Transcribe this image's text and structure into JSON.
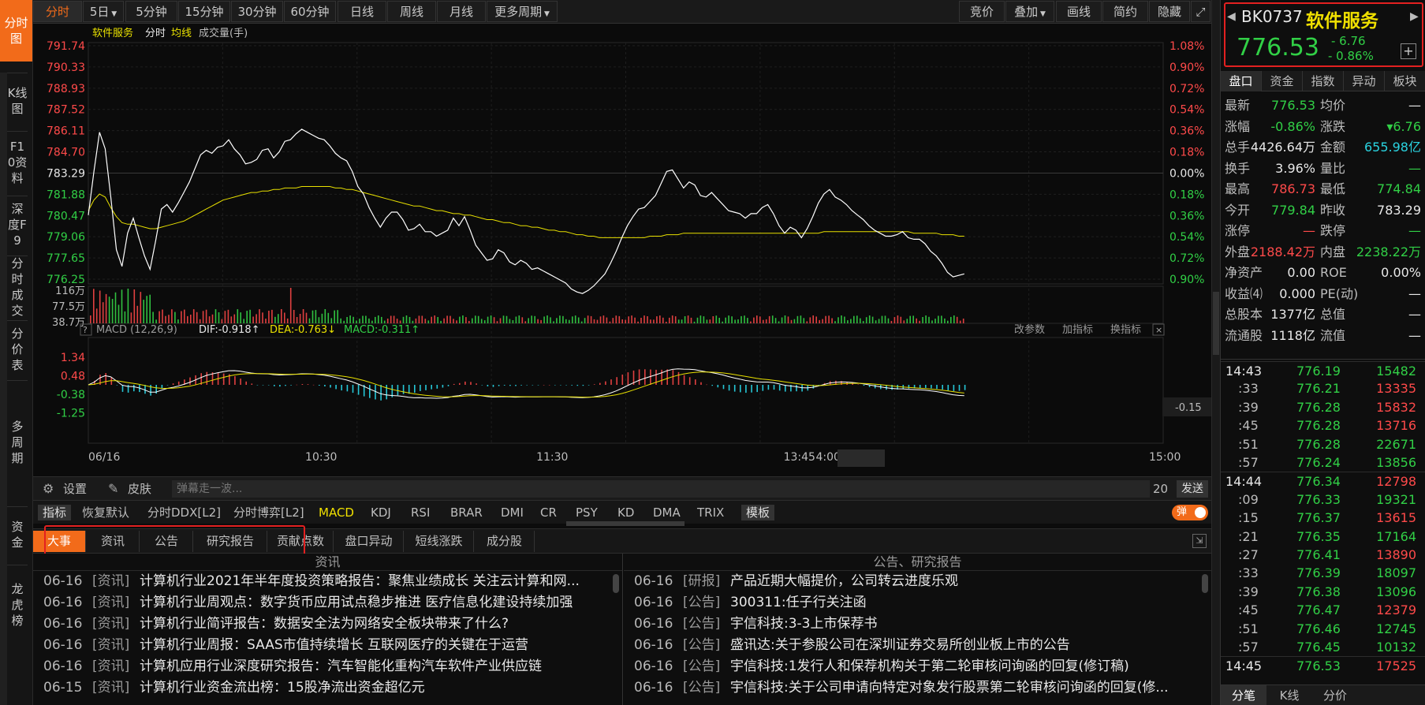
{
  "left_nav": [
    {
      "label": "分时图",
      "active": true
    },
    {
      "label": "K线图"
    },
    {
      "label": "F10资料"
    },
    {
      "label": "深度F9"
    },
    {
      "label": "分时成交"
    },
    {
      "label": "分价表"
    },
    {
      "label": "多周期"
    },
    {
      "label": "资金"
    },
    {
      "label": "龙虎榜"
    }
  ],
  "toolbar": {
    "periods": [
      "分时",
      "5日",
      "5分钟",
      "15分钟",
      "30分钟",
      "60分钟",
      "日线",
      "周线",
      "月线",
      "更多周期"
    ],
    "right": [
      "竞价",
      "叠加",
      "画线",
      "简约",
      "隐藏"
    ]
  },
  "chart_header": {
    "name": "软件服务",
    "mode": "分时",
    "avg": "均线",
    "volume": "成交量(手)"
  },
  "chart_data": {
    "type": "line",
    "price_ticks": [
      "791.74",
      "790.33",
      "788.93",
      "787.52",
      "786.11",
      "784.70",
      "783.29",
      "781.88",
      "780.47",
      "779.06",
      "777.65",
      "776.25"
    ],
    "pct_ticks": [
      "1.08%",
      "0.90%",
      "0.72%",
      "0.54%",
      "0.36%",
      "0.18%",
      "0.00%",
      "0.18%",
      "0.36%",
      "0.54%",
      "0.72%",
      "0.90%"
    ],
    "vol_ticks": [
      "116万",
      "77.5万",
      "38.7万"
    ],
    "macd_ticks": [
      "1.34",
      "0.48",
      "-0.38",
      "-1.25"
    ],
    "x_ticks": [
      "06/16",
      "10:30",
      "11:30",
      "13:45",
      "4:00",
      "15:00"
    ],
    "prev_close": 783.29,
    "price": [
      780.5,
      783.4,
      786.0,
      784.9,
      781.7,
      778.2,
      777.1,
      779.3,
      780.3,
      779.0,
      777.8,
      776.9,
      778.8,
      780.9,
      781.2,
      780.7,
      781.3,
      782.0,
      782.7,
      783.6,
      784.5,
      784.8,
      784.6,
      785.0,
      785.1,
      785.5,
      784.9,
      784.5,
      783.9,
      784.0,
      784.2,
      784.8,
      784.9,
      784.3,
      784.7,
      785.4,
      785.5,
      785.9,
      786.2,
      786.0,
      785.8,
      785.6,
      785.5,
      785.1,
      784.6,
      784.3,
      784.1,
      783.4,
      782.4,
      781.9,
      781.0,
      780.3,
      779.7,
      780.3,
      780.7,
      780.7,
      780.2,
      779.5,
      779.6,
      779.9,
      779.4,
      779.4,
      779.1,
      779.3,
      779.5,
      780.3,
      779.8,
      780.4,
      779.5,
      778.5,
      778.0,
      777.5,
      777.6,
      778.2,
      778.0,
      777.4,
      777.2,
      777.5,
      777.3,
      776.9,
      777.0,
      776.8,
      776.6,
      776.4,
      776.2,
      776.0,
      775.6,
      775.4,
      775.3,
      775.5,
      775.8,
      776.2,
      776.6,
      777.3,
      778.1,
      779.0,
      779.8,
      780.4,
      780.9,
      781.0,
      781.4,
      781.8,
      782.6,
      783.4,
      783.5,
      782.9,
      782.3,
      782.7,
      782.5,
      781.8,
      781.7,
      782.0,
      781.6,
      781.2,
      780.8,
      780.7,
      780.6,
      780.3,
      780.6,
      780.6,
      781.0,
      781.2,
      780.6,
      779.8,
      779.3,
      779.7,
      779.5,
      779.0,
      779.6,
      780.4,
      781.3,
      781.9,
      782.2,
      781.7,
      781.5,
      781.2,
      780.8,
      780.5,
      780.2,
      779.8,
      779.5,
      779.3,
      779.1,
      779.1,
      779.2,
      779.4,
      779.0,
      778.9,
      778.9,
      778.6,
      778.1,
      777.8,
      777.3,
      776.7,
      776.4,
      776.5,
      776.6
    ],
    "avg": [
      780.8,
      781.5,
      781.9,
      781.7,
      781.0,
      780.4,
      780.0,
      779.9,
      779.9,
      779.8,
      779.7,
      779.6,
      779.6,
      779.7,
      779.8,
      779.9,
      780.0,
      780.1,
      780.3,
      780.5,
      780.7,
      780.9,
      781.1,
      781.3,
      781.5,
      781.6,
      781.7,
      781.8,
      781.9,
      782.0,
      782.0,
      782.1,
      782.1,
      782.2,
      782.2,
      782.3,
      782.3,
      782.3,
      782.4,
      782.4,
      782.4,
      782.4,
      782.4,
      782.4,
      782.3,
      782.3,
      782.2,
      782.2,
      782.1,
      782.0,
      781.9,
      781.8,
      781.7,
      781.6,
      781.5,
      781.4,
      781.3,
      781.2,
      781.1,
      781.1,
      781.0,
      780.9,
      780.8,
      780.8,
      780.7,
      780.6,
      780.6,
      780.5,
      780.5,
      780.4,
      780.3,
      780.2,
      780.2,
      780.1,
      780.0,
      780.0,
      779.9,
      779.8,
      779.8,
      779.7,
      779.7,
      779.6,
      779.5,
      779.5,
      779.4,
      779.4,
      779.3,
      779.2,
      779.2,
      779.1,
      779.1,
      779.0,
      779.0,
      779.0,
      779.0,
      779.0,
      779.0,
      779.0,
      779.0,
      779.0,
      779.1,
      779.1,
      779.1,
      779.2,
      779.2,
      779.2,
      779.3,
      779.3,
      779.3,
      779.3,
      779.3,
      779.3,
      779.3,
      779.3,
      779.3,
      779.3,
      779.3,
      779.3,
      779.3,
      779.3,
      779.3,
      779.3,
      779.3,
      779.3,
      779.3,
      779.3,
      779.3,
      779.3,
      779.3,
      779.3,
      779.3,
      779.4,
      779.4,
      779.4,
      779.4,
      779.4,
      779.4,
      779.4,
      779.4,
      779.4,
      779.4,
      779.4,
      779.4,
      779.4,
      779.4,
      779.4,
      779.4,
      779.3,
      779.3,
      779.3,
      779.3,
      779.3,
      779.2,
      779.2,
      779.2,
      779.1,
      779.1
    ],
    "macd_indicator": {
      "label": "MACD (12,26,9)",
      "dif": "DIF:-0.918↑",
      "dea": "DEA:-0.763↓",
      "macd": "MACD:-0.311↑",
      "last": "-0.15"
    },
    "ylim": [
      776.25,
      791.74
    ]
  },
  "chart_links": {
    "params": "改参数",
    "add": "加指标",
    "swap": "换指标"
  },
  "danmu": {
    "settings": "设置",
    "skin": "皮肤",
    "placeholder": "弹幕走一波...",
    "count": "20",
    "send": "发送"
  },
  "indicator_bar": {
    "items": [
      "指标",
      "恢复默认",
      "分时DDX[L2]",
      "分时博弈[L2]",
      "MACD",
      "KDJ",
      "RSI",
      "BRAR",
      "DMI",
      "CR",
      "PSY",
      "KD",
      "DMA",
      "TRIX",
      "模板"
    ],
    "toggle": "弹"
  },
  "news_tabs": [
    "大事",
    "资讯",
    "公告",
    "研究报告",
    "贡献点数",
    "盘口异动",
    "短线涨跌",
    "成分股"
  ],
  "news_left": {
    "header": "资讯",
    "rows": [
      {
        "date": "06-16",
        "cat": "[资讯]",
        "title": "计算机行业2021年半年度投资策略报告：聚焦业绩成长 关注云计算和网..."
      },
      {
        "date": "06-16",
        "cat": "[资讯]",
        "title": "计算机行业周观点：数字货币应用试点稳步推进 医疗信息化建设持续加强"
      },
      {
        "date": "06-16",
        "cat": "[资讯]",
        "title": "计算机行业简评报告：数据安全法为网络安全板块带来了什么?"
      },
      {
        "date": "06-16",
        "cat": "[资讯]",
        "title": "计算机行业周报：SAAS市值持续增长 互联网医疗的关键在于运营"
      },
      {
        "date": "06-16",
        "cat": "[资讯]",
        "title": "计算机应用行业深度研究报告：汽车智能化重构汽车软件产业供应链"
      },
      {
        "date": "06-15",
        "cat": "[资讯]",
        "title": "计算机行业资金流出榜：15股净流出资金超亿元"
      }
    ]
  },
  "news_right": {
    "header": "公告、研究报告",
    "rows": [
      {
        "date": "06-16",
        "cat": "[研报]",
        "title": "产品近期大幅提价，公司转云进度乐观"
      },
      {
        "date": "06-16",
        "cat": "[公告]",
        "title": "300311:任子行关注函"
      },
      {
        "date": "06-16",
        "cat": "[公告]",
        "title": "宇信科技:3-3上市保荐书"
      },
      {
        "date": "06-16",
        "cat": "[公告]",
        "title": "盛讯达:关于参股公司在深圳证券交易所创业板上市的公告"
      },
      {
        "date": "06-16",
        "cat": "[公告]",
        "title": "宇信科技:1发行人和保荐机构关于第二轮审核问询函的回复(修订稿)"
      },
      {
        "date": "06-16",
        "cat": "[公告]",
        "title": "宇信科技:关于公司申请向特定对象发行股票第二轮审核问询函的回复(修..."
      }
    ]
  },
  "quote": {
    "code": "BK0737",
    "name": "软件服务",
    "price": "776.53",
    "change": "- 6.76",
    "pct": "- 0.86%",
    "tabs": [
      "盘口",
      "资金",
      "指数",
      "异动",
      "板块"
    ],
    "fields": [
      {
        "l1": "最新",
        "v1": "776.53",
        "c1": "green",
        "l2": "均价",
        "v2": "—",
        "c2": "white"
      },
      {
        "l1": "涨幅",
        "v1": "-0.86%",
        "c1": "green",
        "l2": "涨跌",
        "v2": "▾6.76",
        "c2": "green"
      },
      {
        "l1": "总手",
        "v1": "4426.64万",
        "c1": "white",
        "l2": "金额",
        "v2": "655.98亿",
        "c2": "cyan"
      },
      {
        "l1": "换手",
        "v1": "3.96%",
        "c1": "white",
        "l2": "量比",
        "v2": "—",
        "c2": "green"
      },
      {
        "l1": "最高",
        "v1": "786.73",
        "c1": "red",
        "l2": "最低",
        "v2": "774.84",
        "c2": "green"
      },
      {
        "l1": "今开",
        "v1": "779.84",
        "c1": "green",
        "l2": "昨收",
        "v2": "783.29",
        "c2": "white"
      },
      {
        "l1": "涨停",
        "v1": "—",
        "c1": "red",
        "l2": "跌停",
        "v2": "—",
        "c2": "green"
      },
      {
        "l1": "外盘",
        "v1": "2188.42万",
        "c1": "red",
        "l2": "内盘",
        "v2": "2238.22万",
        "c2": "green"
      },
      {
        "l1": "净资产",
        "v1": "0.00",
        "c1": "white",
        "l2": "ROE",
        "v2": "0.00%",
        "c2": "white"
      },
      {
        "l1": "收益⑷",
        "v1": "0.000",
        "c1": "white",
        "l2": "PE(动)",
        "v2": "—",
        "c2": "white"
      },
      {
        "l1": "总股本",
        "v1": "1377亿",
        "c1": "white",
        "l2": "总值",
        "v2": "—",
        "c2": "white"
      },
      {
        "l1": "流通股",
        "v1": "1118亿",
        "c1": "white",
        "l2": "流值",
        "v2": "—",
        "c2": "white"
      }
    ],
    "ticks": [
      {
        "t": "14:43",
        "p": "776.19",
        "v": "15482",
        "vc": "green",
        "hl": true
      },
      {
        "t": ":33",
        "p": "776.21",
        "v": "13335",
        "vc": "red"
      },
      {
        "t": ":39",
        "p": "776.28",
        "v": "15832",
        "vc": "red"
      },
      {
        "t": ":45",
        "p": "776.28",
        "v": "13716",
        "vc": "red"
      },
      {
        "t": ":51",
        "p": "776.28",
        "v": "22671",
        "vc": "green"
      },
      {
        "t": ":57",
        "p": "776.24",
        "v": "13856",
        "vc": "green"
      },
      {
        "t": "14:44",
        "p": "776.34",
        "v": "12798",
        "vc": "red",
        "hl": true
      },
      {
        "t": ":09",
        "p": "776.33",
        "v": "19321",
        "vc": "green"
      },
      {
        "t": ":15",
        "p": "776.37",
        "v": "13615",
        "vc": "red"
      },
      {
        "t": ":21",
        "p": "776.35",
        "v": "17164",
        "vc": "green"
      },
      {
        "t": ":27",
        "p": "776.41",
        "v": "13890",
        "vc": "red"
      },
      {
        "t": ":33",
        "p": "776.39",
        "v": "18097",
        "vc": "green"
      },
      {
        "t": ":39",
        "p": "776.38",
        "v": "13096",
        "vc": "green"
      },
      {
        "t": ":45",
        "p": "776.47",
        "v": "12379",
        "vc": "red"
      },
      {
        "t": ":51",
        "p": "776.46",
        "v": "12745",
        "vc": "green"
      },
      {
        "t": ":57",
        "p": "776.45",
        "v": "10132",
        "vc": "green"
      },
      {
        "t": "14:45",
        "p": "776.53",
        "v": "17525",
        "vc": "red",
        "hl": true
      }
    ],
    "bottom_tabs": [
      "分笔",
      "K线",
      "分价"
    ]
  }
}
